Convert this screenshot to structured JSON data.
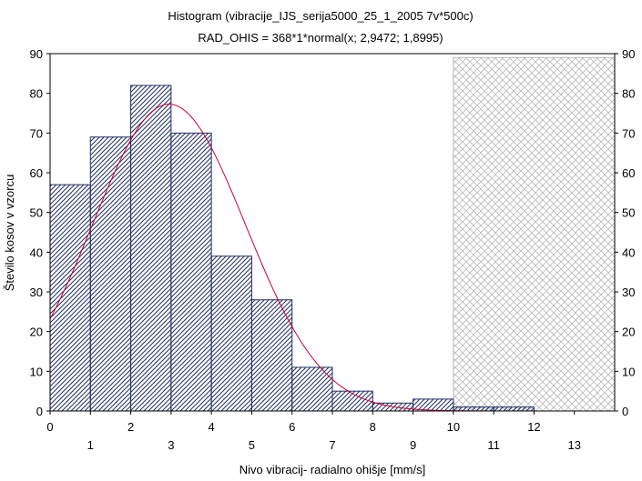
{
  "chart_data": {
    "type": "bar",
    "title": "Histogram (vibracije_IJS_serija5000_25_1_2005 7v*500c)",
    "subtitle": "RAD_OHIS = 368*1*normal(x; 2,9472; 1,8995)",
    "xlabel": "Nivo vibracij- radialno ohišje [mm/s]",
    "ylabel": "Število kosov v vzorcu",
    "xlim": [
      0,
      14
    ],
    "ylim": [
      0,
      90
    ],
    "y_ticks": [
      "0",
      "10",
      "20",
      "30",
      "40",
      "50",
      "60",
      "70",
      "80",
      "90"
    ],
    "y_tick_values": [
      0,
      10,
      20,
      30,
      40,
      50,
      60,
      70,
      80,
      90
    ],
    "x_ticks_even": [
      "0",
      "2",
      "4",
      "6",
      "8",
      "10",
      "12"
    ],
    "x_ticks_even_values": [
      0,
      2,
      4,
      6,
      8,
      10,
      12
    ],
    "x_ticks_odd": [
      "1",
      "3",
      "5",
      "7",
      "9",
      "11",
      "13"
    ],
    "x_ticks_odd_values": [
      1,
      3,
      5,
      7,
      9,
      11,
      13
    ],
    "bins": [
      {
        "from": 0,
        "to": 1,
        "count": 57
      },
      {
        "from": 1,
        "to": 2,
        "count": 69
      },
      {
        "from": 2,
        "to": 3,
        "count": 82
      },
      {
        "from": 3,
        "to": 4,
        "count": 70
      },
      {
        "from": 4,
        "to": 5,
        "count": 39
      },
      {
        "from": 5,
        "to": 6,
        "count": 28
      },
      {
        "from": 6,
        "to": 7,
        "count": 11
      },
      {
        "from": 7,
        "to": 8,
        "count": 5
      },
      {
        "from": 8,
        "to": 9,
        "count": 2
      },
      {
        "from": 9,
        "to": 10,
        "count": 3
      },
      {
        "from": 10,
        "to": 11,
        "count": 1
      },
      {
        "from": 11,
        "to": 12,
        "count": 1
      },
      {
        "from": 12,
        "to": 13,
        "count": 0
      },
      {
        "from": 13,
        "to": 14,
        "count": 0
      }
    ],
    "fit": {
      "type": "normal",
      "n": 368,
      "bin_width": 1,
      "mean": 2.9472,
      "sd": 1.8995
    },
    "shaded_region": {
      "from": 10,
      "to": 14,
      "top": 89
    },
    "right_axis": true,
    "grid": false,
    "colors": {
      "bar_hatch": "#1f2f66",
      "fit_line": "#cc0033",
      "shaded": "#b8b8b8",
      "axis": "#000000"
    }
  }
}
